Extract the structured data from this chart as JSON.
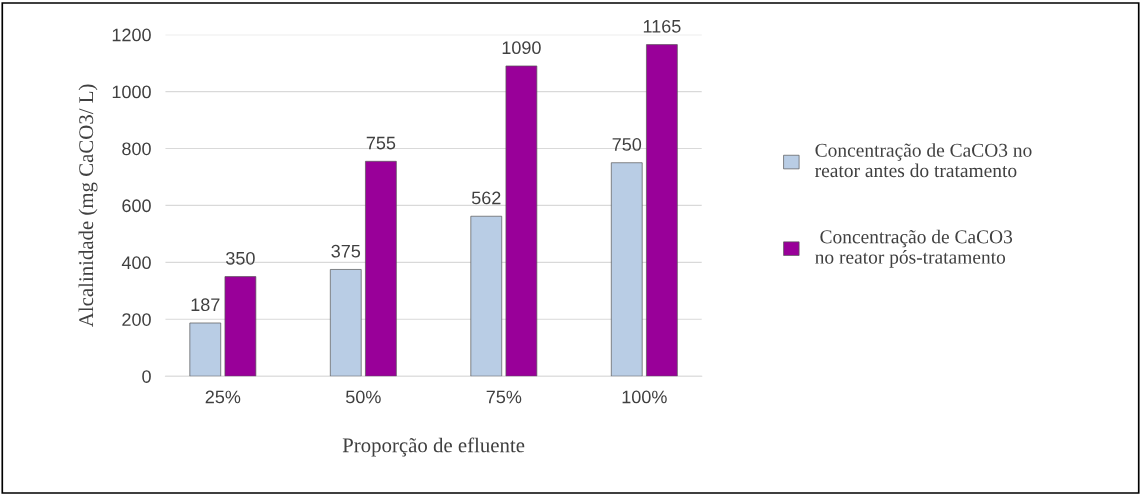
{
  "chart_data": {
    "type": "bar",
    "xlabel": "Proporção de efluente",
    "ylabel": "Alcalinidade (mg CaCO3/ L)",
    "categories": [
      "25%",
      "50%",
      "75%",
      "100%"
    ],
    "series": [
      {
        "name": "Concentração de CaCO3 no\nreator antes do tratamento",
        "color": "#b9cde5",
        "values": [
          187,
          375,
          562,
          750
        ]
      },
      {
        "name": " Concentração de CaCO3\nno reator pós-tratamento",
        "color": "#990099",
        "values": [
          350,
          755,
          1090,
          1165
        ]
      }
    ],
    "ylim": [
      0,
      1200
    ],
    "yticks": [
      0,
      200,
      400,
      600,
      800,
      1000,
      1200
    ],
    "grid": "y",
    "legend": "right",
    "data_labels": true
  }
}
